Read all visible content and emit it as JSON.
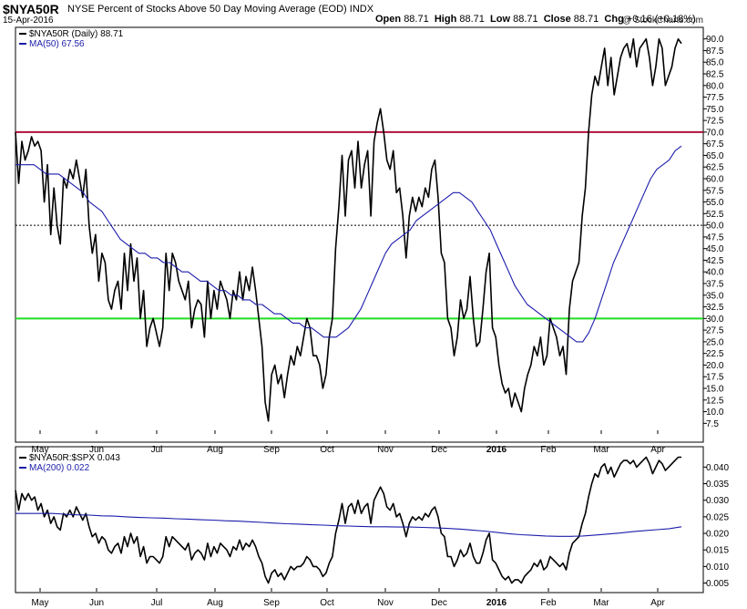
{
  "header": {
    "symbol": "$NYA50R",
    "title": "NYSE Percent of Stocks Above 50 Day Moving Average (EOD)  INDX",
    "date": "15-Apr-2016",
    "brand": "@ StockCharts.com",
    "quote": {
      "open_label": "Open",
      "open": "88.71",
      "high_label": "High",
      "high": "88.71",
      "low_label": "Low",
      "low": "88.71",
      "close_label": "Close",
      "close": "88.71",
      "chg_label": "Chg",
      "chg": "+0.16 (+0.18%)"
    }
  },
  "chart_data": [
    {
      "type": "line",
      "x_labels": [
        "May",
        "Jun",
        "Jul",
        "Aug",
        "Sep",
        "Oct",
        "Nov",
        "Dec",
        "2016",
        "Feb",
        "Mar",
        "Apr"
      ],
      "y_ticks": [
        "90.0",
        "87.5",
        "85.0",
        "82.5",
        "80.0",
        "77.5",
        "75.0",
        "72.5",
        "70.0",
        "67.5",
        "65.0",
        "62.5",
        "60.0",
        "57.5",
        "55.0",
        "52.5",
        "50.0",
        "47.5",
        "45.0",
        "42.5",
        "40.0",
        "37.5",
        "35.0",
        "32.5",
        "30.0",
        "27.5",
        "25.0",
        "22.5",
        "20.0",
        "17.5",
        "15.0",
        "12.5",
        "10.0",
        "7.5"
      ],
      "ylim": [
        6,
        91.5
      ],
      "reference_lines": [
        {
          "value": 70,
          "color": "#b0103a"
        },
        {
          "value": 50,
          "color": "#000000",
          "style": "dotted"
        },
        {
          "value": 30,
          "color": "#22dd22"
        }
      ],
      "series": [
        {
          "name": "$NYA50R (Daily) 88.71",
          "color": "#000000",
          "values": [
            70,
            59,
            68,
            64,
            66,
            69,
            67,
            68,
            66,
            55,
            63,
            48,
            58,
            50,
            46,
            60,
            58,
            62,
            60,
            64,
            60,
            56,
            62,
            50,
            44,
            48,
            38,
            44,
            42,
            34,
            32,
            36,
            38,
            32,
            44,
            36,
            46,
            38,
            43,
            30,
            36,
            24,
            28,
            30,
            27,
            24,
            28,
            44,
            36,
            44,
            42,
            38,
            36,
            34,
            38,
            28,
            32,
            34,
            33,
            26,
            38,
            30,
            36,
            32,
            38,
            36,
            34,
            30,
            36,
            34,
            40,
            34,
            39,
            36,
            41,
            36,
            30,
            24,
            12,
            8,
            18,
            20,
            16,
            18,
            13,
            18,
            22,
            20,
            24,
            22,
            26,
            30,
            28,
            22,
            22,
            20,
            15,
            18,
            26,
            30,
            45,
            54,
            65,
            52,
            64,
            66,
            58,
            68,
            58,
            63,
            66,
            52,
            68,
            72,
            75,
            70,
            64,
            62,
            66,
            57,
            58,
            52,
            43,
            52,
            56,
            53,
            56,
            54,
            58,
            56,
            62,
            64,
            56,
            44,
            42,
            30,
            28,
            22,
            26,
            34,
            30,
            32,
            39,
            30,
            24,
            25,
            32,
            40,
            44,
            28,
            26,
            20,
            16,
            14,
            15,
            11,
            14,
            12,
            10,
            15,
            18,
            20,
            24,
            22,
            26,
            20,
            22,
            30,
            28,
            26,
            22,
            24,
            18,
            32,
            38,
            40,
            42,
            52,
            58,
            70,
            78,
            82,
            80,
            84,
            88,
            80,
            86,
            78,
            82,
            86,
            88,
            89,
            86,
            90,
            84,
            88,
            89,
            90,
            86,
            80,
            84,
            90,
            88,
            80,
            82,
            84,
            88,
            90,
            89
          ]
        },
        {
          "name": "MA(50) 67.56",
          "color": "#1c1cab",
          "values": [
            63,
            63,
            63,
            63,
            62,
            61,
            61,
            61,
            60,
            59,
            58,
            57,
            55,
            54,
            53,
            51,
            49,
            47,
            46,
            45,
            44,
            44,
            43,
            43,
            42,
            42,
            41,
            40,
            40,
            39,
            38,
            38,
            37,
            36,
            36,
            35,
            35,
            34,
            34,
            33,
            33,
            32,
            31,
            31,
            30,
            29,
            29,
            28,
            28,
            27,
            26,
            26,
            26,
            27,
            28,
            30,
            32,
            35,
            38,
            41,
            44,
            46,
            47,
            48,
            49,
            51,
            52,
            53,
            54,
            55,
            56,
            57,
            57,
            56,
            55,
            53,
            51,
            49,
            46,
            43,
            40,
            37,
            35,
            33,
            32,
            31,
            30,
            29,
            28,
            27,
            26,
            25,
            25,
            27,
            30,
            34,
            38,
            42,
            45,
            48,
            51,
            54,
            57,
            60,
            62,
            63,
            64,
            66,
            67
          ]
        }
      ]
    },
    {
      "type": "line",
      "x_labels": [
        "May",
        "Jun",
        "Jul",
        "Aug",
        "Sep",
        "Oct",
        "Nov",
        "Dec",
        "2016",
        "Feb",
        "Mar",
        "Apr"
      ],
      "y_ticks": [
        "0.040",
        "0.035",
        "0.030",
        "0.025",
        "0.020",
        "0.015",
        "0.010",
        "0.005"
      ],
      "ylim": [
        0.0035,
        0.0445
      ],
      "series": [
        {
          "name": "$NYA50R:$SPX 0.043",
          "color": "#000000",
          "values": [
            0.033,
            0.027,
            0.032,
            0.03,
            0.032,
            0.03,
            0.031,
            0.027,
            0.029,
            0.025,
            0.027,
            0.023,
            0.025,
            0.022,
            0.021,
            0.026,
            0.025,
            0.027,
            0.025,
            0.028,
            0.026,
            0.024,
            0.026,
            0.022,
            0.019,
            0.02,
            0.017,
            0.019,
            0.018,
            0.015,
            0.014,
            0.016,
            0.017,
            0.014,
            0.019,
            0.016,
            0.02,
            0.017,
            0.019,
            0.013,
            0.016,
            0.011,
            0.013,
            0.013,
            0.012,
            0.011,
            0.013,
            0.019,
            0.016,
            0.019,
            0.018,
            0.017,
            0.016,
            0.015,
            0.017,
            0.012,
            0.014,
            0.015,
            0.014,
            0.012,
            0.017,
            0.013,
            0.016,
            0.014,
            0.017,
            0.016,
            0.015,
            0.013,
            0.016,
            0.015,
            0.018,
            0.015,
            0.017,
            0.016,
            0.018,
            0.016,
            0.013,
            0.011,
            0.007,
            0.005,
            0.008,
            0.009,
            0.007,
            0.008,
            0.006,
            0.008,
            0.01,
            0.009,
            0.01,
            0.01,
            0.011,
            0.013,
            0.012,
            0.01,
            0.01,
            0.009,
            0.007,
            0.008,
            0.011,
            0.013,
            0.02,
            0.024,
            0.029,
            0.023,
            0.028,
            0.029,
            0.026,
            0.03,
            0.026,
            0.028,
            0.029,
            0.023,
            0.03,
            0.032,
            0.034,
            0.032,
            0.028,
            0.027,
            0.029,
            0.025,
            0.026,
            0.023,
            0.019,
            0.023,
            0.025,
            0.024,
            0.025,
            0.024,
            0.026,
            0.025,
            0.027,
            0.028,
            0.025,
            0.02,
            0.019,
            0.013,
            0.013,
            0.01,
            0.012,
            0.015,
            0.013,
            0.014,
            0.017,
            0.013,
            0.011,
            0.011,
            0.014,
            0.018,
            0.02,
            0.012,
            0.011,
            0.009,
            0.007,
            0.006,
            0.007,
            0.005,
            0.006,
            0.006,
            0.005,
            0.007,
            0.008,
            0.009,
            0.011,
            0.01,
            0.012,
            0.009,
            0.01,
            0.013,
            0.012,
            0.011,
            0.01,
            0.011,
            0.009,
            0.014,
            0.017,
            0.018,
            0.019,
            0.023,
            0.026,
            0.031,
            0.035,
            0.038,
            0.037,
            0.04,
            0.041,
            0.038,
            0.04,
            0.037,
            0.039,
            0.041,
            0.042,
            0.042,
            0.041,
            0.042,
            0.04,
            0.041,
            0.042,
            0.043,
            0.041,
            0.038,
            0.04,
            0.042,
            0.041,
            0.039,
            0.04,
            0.041,
            0.042,
            0.043,
            0.043
          ]
        },
        {
          "name": "MA(200) 0.022",
          "color": "#1c1cab",
          "values": [
            0.026,
            0.026,
            0.026,
            0.026,
            0.0258,
            0.0256,
            0.0255,
            0.0253,
            0.0252,
            0.025,
            0.0248,
            0.0247,
            0.0246,
            0.0244,
            0.0243,
            0.0241,
            0.024,
            0.0238,
            0.0237,
            0.0235,
            0.0233,
            0.0231,
            0.0229,
            0.0228,
            0.0226,
            0.0225,
            0.0223,
            0.0222,
            0.0221,
            0.022,
            0.022,
            0.0219,
            0.0219,
            0.0218,
            0.0217,
            0.0215,
            0.0213,
            0.021,
            0.0207,
            0.0203,
            0.0199,
            0.0196,
            0.0194,
            0.0192,
            0.0191,
            0.0191,
            0.0192,
            0.0195,
            0.0198,
            0.0201,
            0.0205,
            0.0208,
            0.0211,
            0.0214,
            0.022
          ]
        }
      ]
    }
  ]
}
